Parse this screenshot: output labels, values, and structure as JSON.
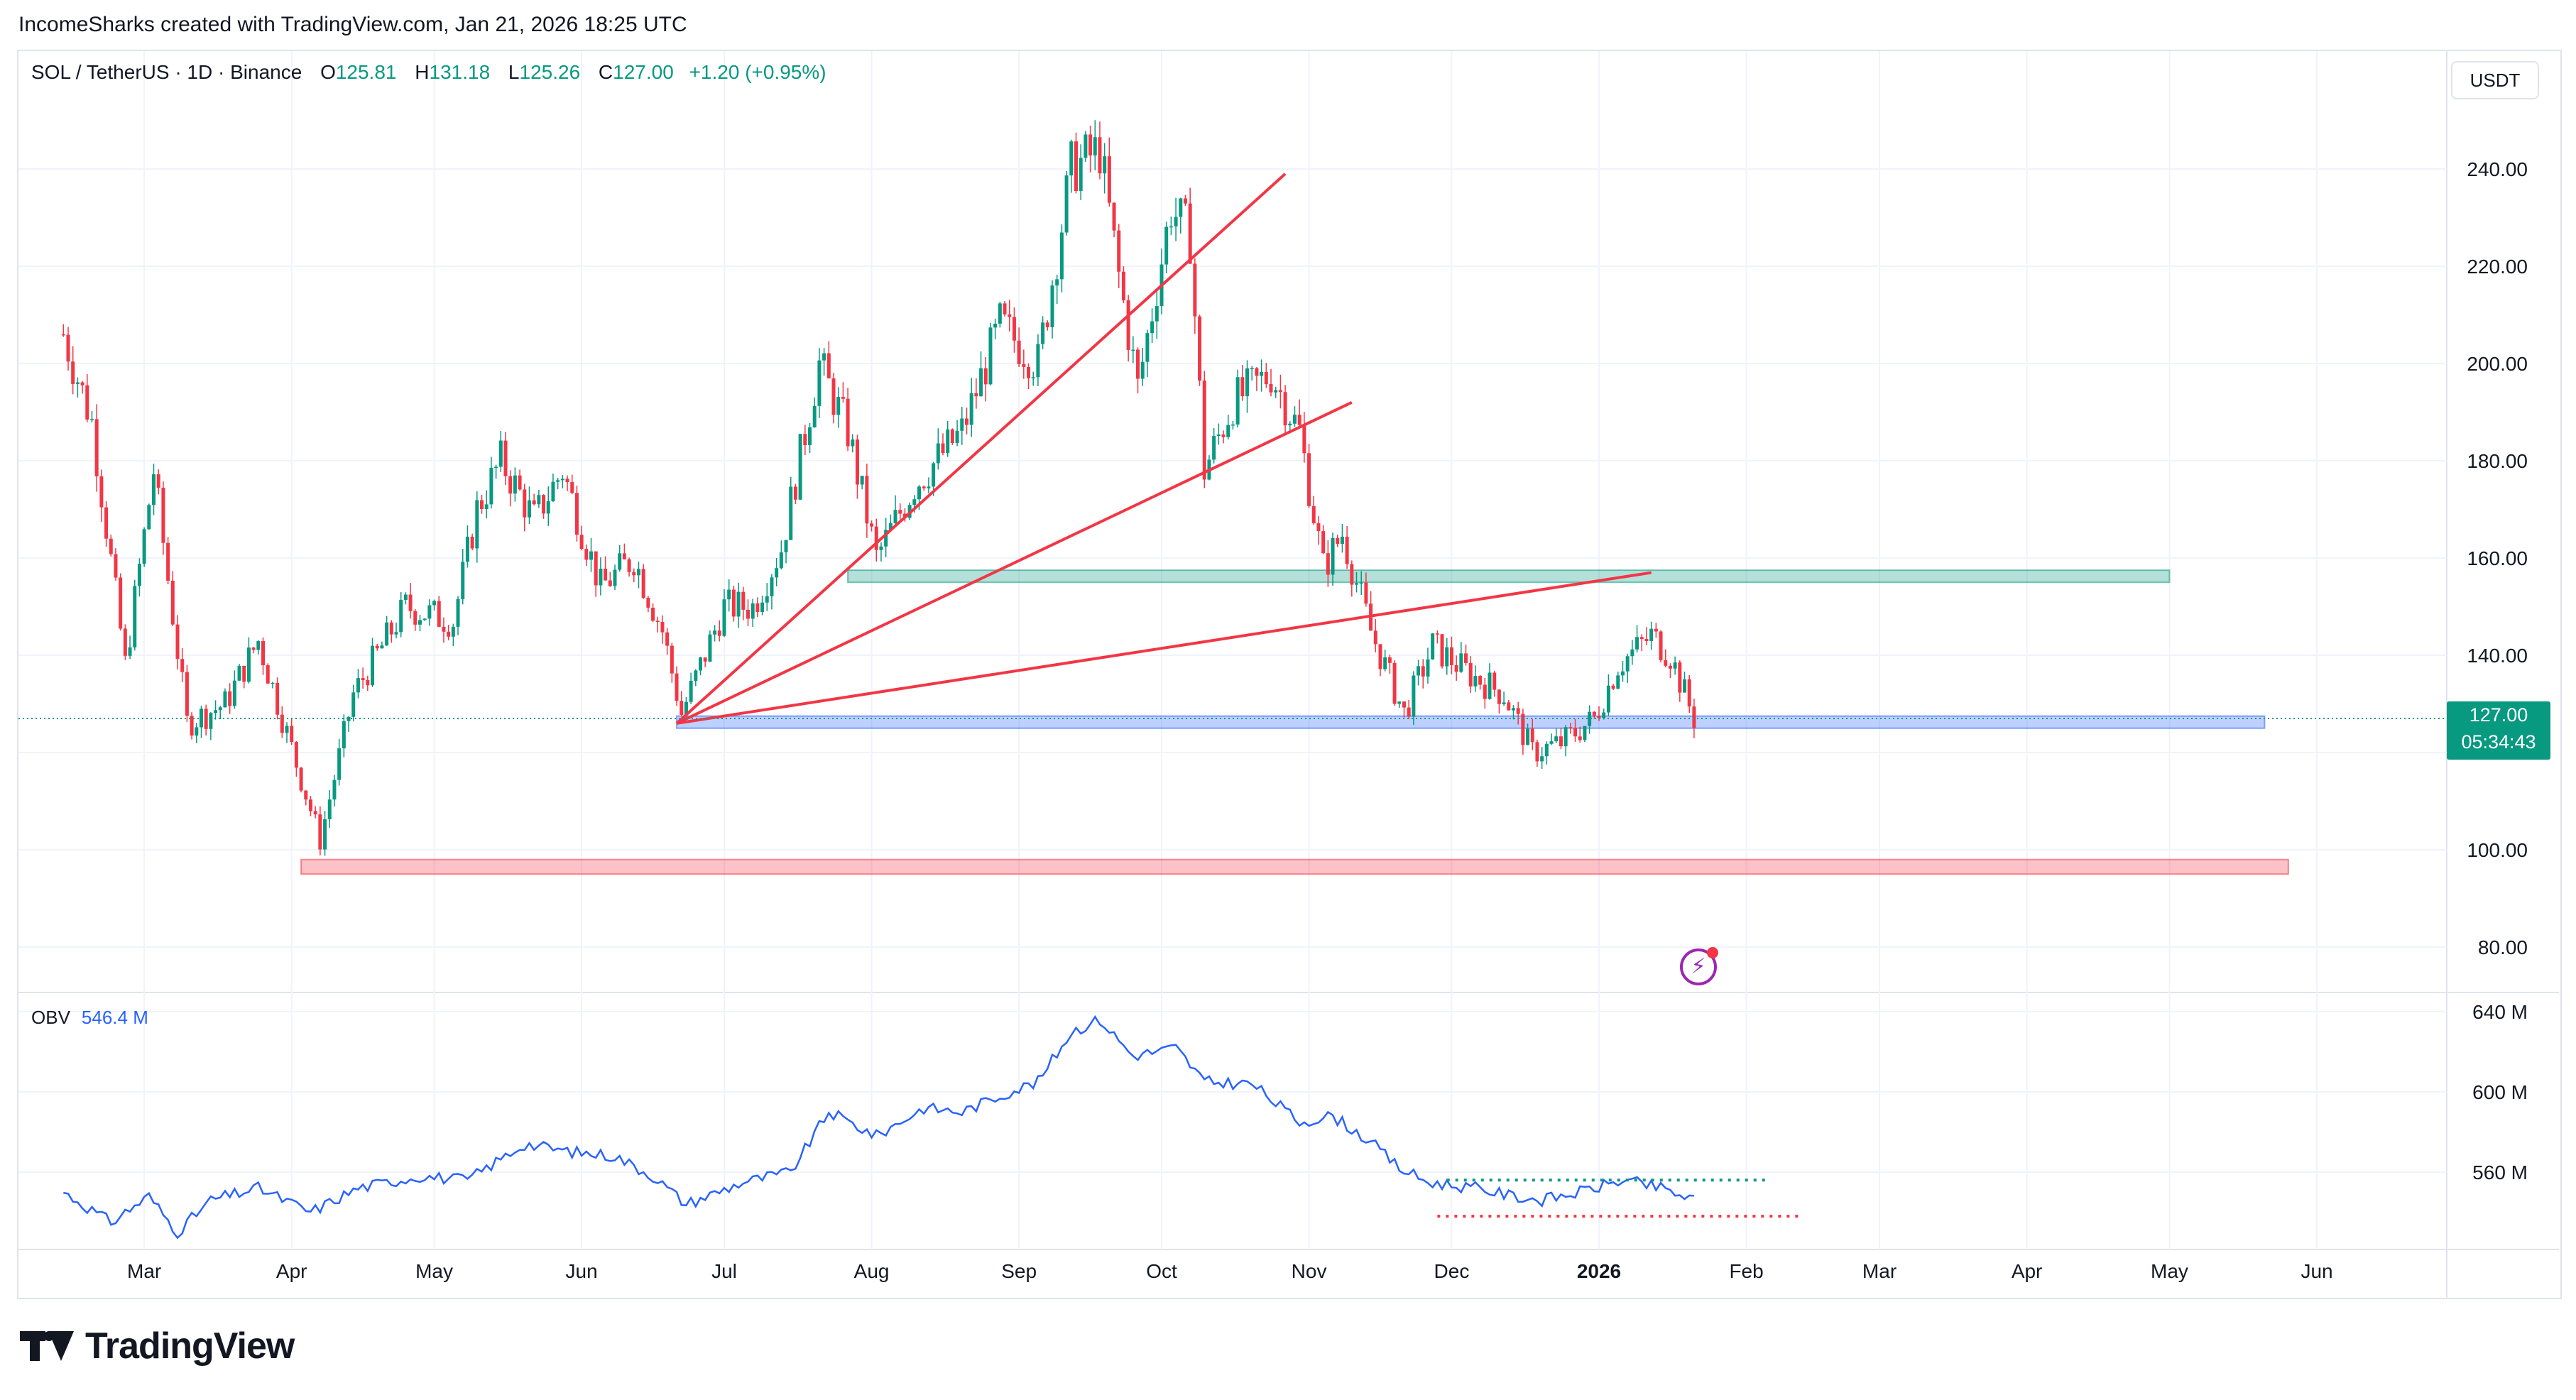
{
  "header": {
    "created_by": "IncomeSharks created with TradingView.com, Jan 21, 2026 18:25 UTC"
  },
  "legend": {
    "symbol": "SOL / TetherUS · 1D · Binance",
    "open_label": "O",
    "open": "125.81",
    "high_label": "H",
    "high": "131.18",
    "low_label": "L",
    "low": "125.26",
    "close_label": "C",
    "close": "127.00",
    "change": "+1.20 (+0.95%)"
  },
  "currency_button": "USDT",
  "price_tag": {
    "price": "127.00",
    "countdown": "05:34:43"
  },
  "obv_legend": {
    "name": "OBV",
    "value": "546.4 M"
  },
  "brand": {
    "name": "TradingView"
  },
  "colors": {
    "up": "#089981",
    "down": "#f23645",
    "obv": "#2962ff",
    "trendline": "#f23645"
  },
  "chart_data": [
    {
      "type": "candlestick",
      "x_axis": {
        "ticks": [
          "Mar",
          "Apr",
          "May",
          "Jun",
          "Jul",
          "Aug",
          "Sep",
          "Oct",
          "Nov",
          "Dec",
          "2026",
          "Feb",
          "Mar",
          "Apr",
          "May",
          "Jun"
        ]
      },
      "y_axis": {
        "ticks": [
          80,
          100,
          140,
          160,
          180,
          200,
          220,
          240
        ],
        "ylim": [
          73,
          257
        ]
      },
      "price_path": [
        [
          "2025-02-12",
          206
        ],
        [
          "2025-02-18",
          188
        ],
        [
          "2025-02-25",
          138
        ],
        [
          "2025-03-03",
          178
        ],
        [
          "2025-03-10",
          126
        ],
        [
          "2025-03-18",
          130
        ],
        [
          "2025-03-25",
          143
        ],
        [
          "2025-03-31",
          124
        ],
        [
          "2025-04-07",
          102
        ],
        [
          "2025-04-14",
          132
        ],
        [
          "2025-04-25",
          150
        ],
        [
          "2025-05-05",
          147
        ],
        [
          "2025-05-10",
          170
        ],
        [
          "2025-05-15",
          180
        ],
        [
          "2025-05-22",
          168
        ],
        [
          "2025-05-28",
          178
        ],
        [
          "2025-06-05",
          154
        ],
        [
          "2025-06-12",
          160
        ],
        [
          "2025-06-18",
          145
        ],
        [
          "2025-06-22",
          128
        ],
        [
          "2025-07-01",
          150
        ],
        [
          "2025-07-07",
          150
        ],
        [
          "2025-07-13",
          162
        ],
        [
          "2025-07-21",
          200
        ],
        [
          "2025-07-27",
          186
        ],
        [
          "2025-08-02",
          160
        ],
        [
          "2025-08-10",
          175
        ],
        [
          "2025-08-20",
          186
        ],
        [
          "2025-08-28",
          208
        ],
        [
          "2025-09-05",
          200
        ],
        [
          "2025-09-12",
          240
        ],
        [
          "2025-09-18",
          244
        ],
        [
          "2025-09-22",
          218
        ],
        [
          "2025-09-26",
          195
        ],
        [
          "2025-10-03",
          232
        ],
        [
          "2025-10-07",
          226
        ],
        [
          "2025-10-10",
          178
        ],
        [
          "2025-10-16",
          192
        ],
        [
          "2025-10-24",
          198
        ],
        [
          "2025-10-30",
          186
        ],
        [
          "2025-11-04",
          158
        ],
        [
          "2025-11-08",
          165
        ],
        [
          "2025-11-14",
          145
        ],
        [
          "2025-11-21",
          128
        ],
        [
          "2025-11-27",
          142
        ],
        [
          "2025-12-05",
          136
        ],
        [
          "2025-12-12",
          132
        ],
        [
          "2025-12-18",
          120
        ],
        [
          "2025-12-24",
          122
        ],
        [
          "2025-12-31",
          127
        ],
        [
          "2026-01-05",
          138
        ],
        [
          "2026-01-12",
          144
        ],
        [
          "2026-01-16",
          140
        ],
        [
          "2026-01-21",
          127
        ]
      ],
      "zones": [
        {
          "name": "resistance-zone-green",
          "low": 155,
          "high": 157.5,
          "from": "2025-07-27",
          "to": "2026-05-01",
          "color": "#089981"
        },
        {
          "name": "support-zone-blue",
          "low": 125,
          "high": 127.5,
          "from": "2025-06-21",
          "to": "2026-05-21",
          "color": "#2962ff"
        },
        {
          "name": "support-zone-red",
          "low": 95,
          "high": 98,
          "from": "2025-04-03",
          "to": "2026-05-26",
          "color": "#f23645"
        }
      ],
      "trendlines": [
        {
          "from": [
            "2025-06-21",
            126
          ],
          "to": [
            "2025-10-27",
            239
          ]
        },
        {
          "from": [
            "2025-06-21",
            126
          ],
          "to": [
            "2025-11-10",
            192
          ]
        },
        {
          "from": [
            "2025-06-21",
            126
          ],
          "to": [
            "2026-01-12",
            157
          ]
        }
      ]
    },
    {
      "type": "line",
      "name": "OBV",
      "y_axis": {
        "ticks": [
          "560 M",
          "600 M",
          "640 M"
        ],
        "ylim": [
          522,
          648
        ]
      },
      "series": [
        {
          "name": "OBV",
          "values": [
            [
              "2025-02-12",
              550
            ],
            [
              "2025-02-22",
              535
            ],
            [
              "2025-03-02",
              548
            ],
            [
              "2025-03-08",
              530
            ],
            [
              "2025-03-15",
              546
            ],
            [
              "2025-03-25",
              552
            ],
            [
              "2025-04-05",
              540
            ],
            [
              "2025-04-15",
              552
            ],
            [
              "2025-04-28",
              558
            ],
            [
              "2025-05-08",
              556
            ],
            [
              "2025-05-20",
              574
            ],
            [
              "2025-05-30",
              570
            ],
            [
              "2025-06-08",
              568
            ],
            [
              "2025-06-16",
              558
            ],
            [
              "2025-06-23",
              544
            ],
            [
              "2025-07-05",
              555
            ],
            [
              "2025-07-15",
              560
            ],
            [
              "2025-07-23",
              590
            ],
            [
              "2025-08-02",
              578
            ],
            [
              "2025-08-12",
              592
            ],
            [
              "2025-08-20",
              590
            ],
            [
              "2025-08-30",
              600
            ],
            [
              "2025-09-05",
              605
            ],
            [
              "2025-09-12",
              630
            ],
            [
              "2025-09-18",
              636
            ],
            [
              "2025-09-25",
              618
            ],
            [
              "2025-10-04",
              622
            ],
            [
              "2025-10-10",
              605
            ],
            [
              "2025-10-20",
              604
            ],
            [
              "2025-10-30",
              585
            ],
            [
              "2025-11-06",
              588
            ],
            [
              "2025-11-14",
              575
            ],
            [
              "2025-11-20",
              562
            ],
            [
              "2025-11-26",
              555
            ],
            [
              "2025-12-06",
              552
            ],
            [
              "2025-12-14",
              548
            ],
            [
              "2025-12-20",
              546
            ],
            [
              "2025-12-28",
              550
            ],
            [
              "2026-01-06",
              556
            ],
            [
              "2026-01-14",
              552
            ],
            [
              "2026-01-21",
              546
            ]
          ]
        }
      ],
      "reference_lines": [
        {
          "name": "obv-resistance-dotted",
          "value": 556,
          "from": "2025-11-30",
          "to": "2026-02-05",
          "color": "#089981"
        },
        {
          "name": "obv-support-dotted",
          "value": 538,
          "from": "2025-11-28",
          "to": "2026-02-12",
          "color": "#f23645"
        }
      ]
    }
  ]
}
